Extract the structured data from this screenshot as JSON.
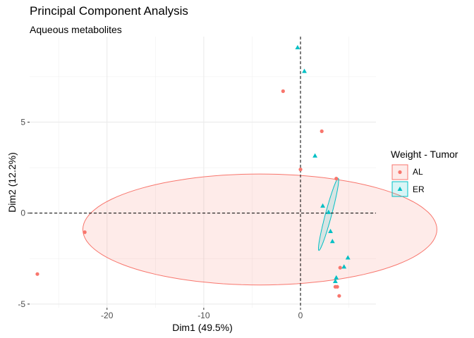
{
  "chart_data": {
    "type": "scatter",
    "title": "Principal Component Analysis",
    "subtitle": "Aqueous metabolites",
    "xlabel": "Dim1 (49.5%)",
    "ylabel": "Dim2 (12.2%)",
    "xlim": [
      -28.0,
      7.8
    ],
    "ylim": [
      -5.2,
      9.7
    ],
    "xticks": [
      -20,
      -10,
      0
    ],
    "yticks": [
      -5,
      0,
      5
    ],
    "grid": true,
    "legend": {
      "title": "Weight - Tumor",
      "position": "right",
      "entries": [
        "AL",
        "ER"
      ]
    },
    "series": [
      {
        "name": "AL",
        "color": "#F8766D",
        "marker": "circle",
        "points": [
          [
            -27.2,
            -3.35
          ],
          [
            -22.3,
            -1.05
          ],
          [
            -1.8,
            6.7
          ],
          [
            0.0,
            2.4
          ],
          [
            2.2,
            4.5
          ],
          [
            3.7,
            1.9
          ],
          [
            3.6,
            -4.05
          ],
          [
            3.8,
            -4.05
          ],
          [
            4.1,
            -3.0
          ],
          [
            4.0,
            -4.55
          ]
        ],
        "ellipse": {
          "center": [
            -4.2,
            -0.9
          ],
          "rx": 18.3,
          "ry": 3.05,
          "angle": 0
        }
      },
      {
        "name": "ER",
        "color": "#00BFC4",
        "marker": "triangle",
        "points": [
          [
            -0.3,
            9.1
          ],
          [
            0.4,
            7.8
          ],
          [
            1.5,
            3.15
          ],
          [
            2.3,
            0.4
          ],
          [
            2.9,
            0.05
          ],
          [
            3.1,
            -1.0
          ],
          [
            3.3,
            -1.55
          ],
          [
            3.6,
            -3.75
          ],
          [
            3.7,
            -3.55
          ],
          [
            4.5,
            -2.95
          ],
          [
            4.9,
            -2.45
          ]
        ],
        "ellipse": {
          "center": [
            2.9,
            -0.07
          ],
          "rx": 3.86,
          "ry": 0.32,
          "angle": 75
        }
      }
    ],
    "reference_lines": {
      "x": 0,
      "y": 0
    }
  }
}
